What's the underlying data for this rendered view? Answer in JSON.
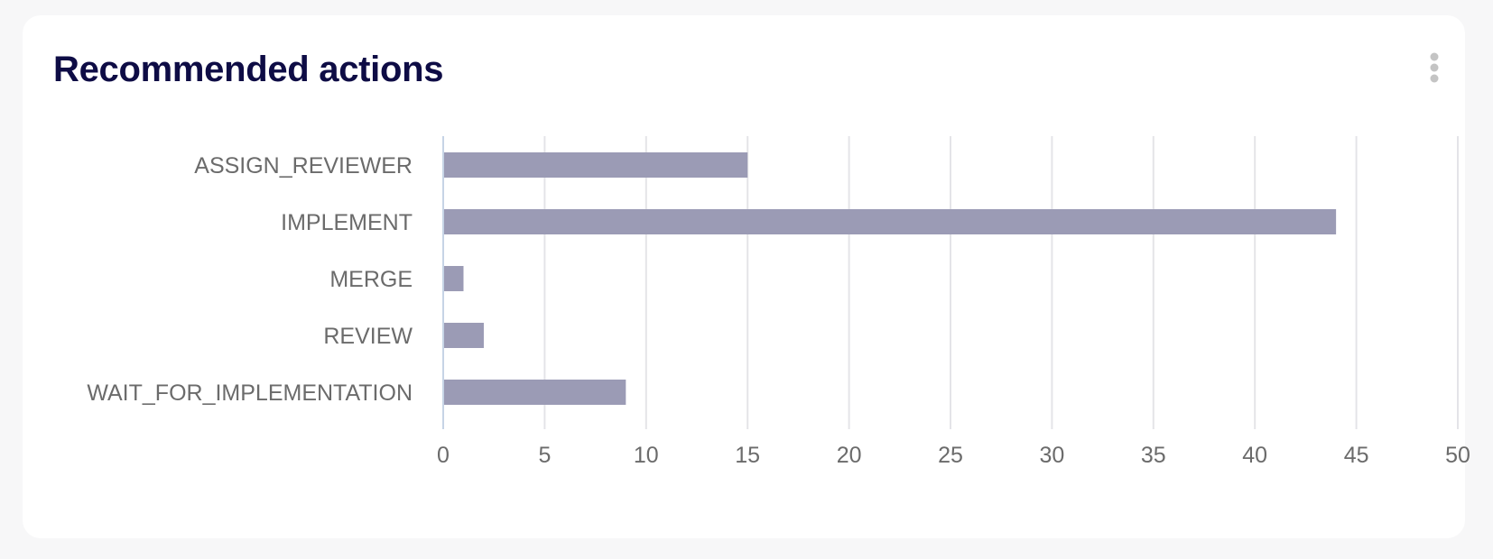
{
  "card": {
    "title": "Recommended actions",
    "menu_icon": "more-vertical-icon"
  },
  "colors": {
    "bar": "#9b9bb5",
    "title": "#0e0c45",
    "grid": "#e4e4e8",
    "axis": "#c6d4e6",
    "label": "#6b6b6b",
    "menu_dots": "#c4c4c4"
  },
  "chart_data": {
    "type": "bar",
    "orientation": "horizontal",
    "title": "Recommended actions",
    "categories": [
      "ASSIGN_REVIEWER",
      "IMPLEMENT",
      "MERGE",
      "REVIEW",
      "WAIT_FOR_IMPLEMENTATION"
    ],
    "values": [
      15,
      44,
      1,
      2,
      9
    ],
    "xlim": [
      0,
      50
    ],
    "xticks": [
      0,
      5,
      10,
      15,
      20,
      25,
      30,
      35,
      40,
      45,
      50
    ],
    "xlabel": "",
    "ylabel": "",
    "grid": true,
    "legend": false
  }
}
